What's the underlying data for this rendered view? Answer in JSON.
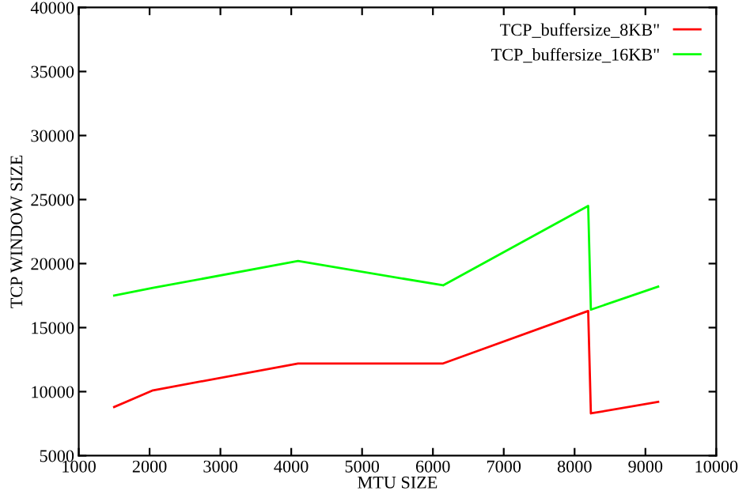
{
  "chart_data": {
    "type": "line",
    "xlabel": "MTU SIZE",
    "ylabel": "TCP WINDOW SIZE",
    "xlim": [
      1000,
      10000
    ],
    "xticks": [
      1000,
      2000,
      3000,
      4000,
      5000,
      6000,
      7000,
      8000,
      9000,
      10000
    ],
    "ylim": [
      5000,
      40000
    ],
    "yticks": [
      5000,
      10000,
      15000,
      20000,
      25000,
      30000,
      35000,
      40000
    ],
    "grid": false,
    "legend": "top right",
    "marker": "none",
    "line_style": "solid",
    "series": [
      {
        "name": "TCP_buffersize_8KB\"",
        "color": "#ff0000",
        "x": [
          1500,
          2048,
          4096,
          6144,
          8192,
          8230,
          9180
        ],
        "values": [
          8800,
          10100,
          12200,
          12200,
          16300,
          8300,
          9200
        ]
      },
      {
        "name": "TCP_buffersize_16KB\"",
        "color": "#00ff00",
        "x": [
          1500,
          2048,
          4096,
          6144,
          8192,
          8230,
          9180
        ],
        "values": [
          17500,
          18100,
          20200,
          18300,
          24500,
          16400,
          18200
        ]
      }
    ]
  }
}
